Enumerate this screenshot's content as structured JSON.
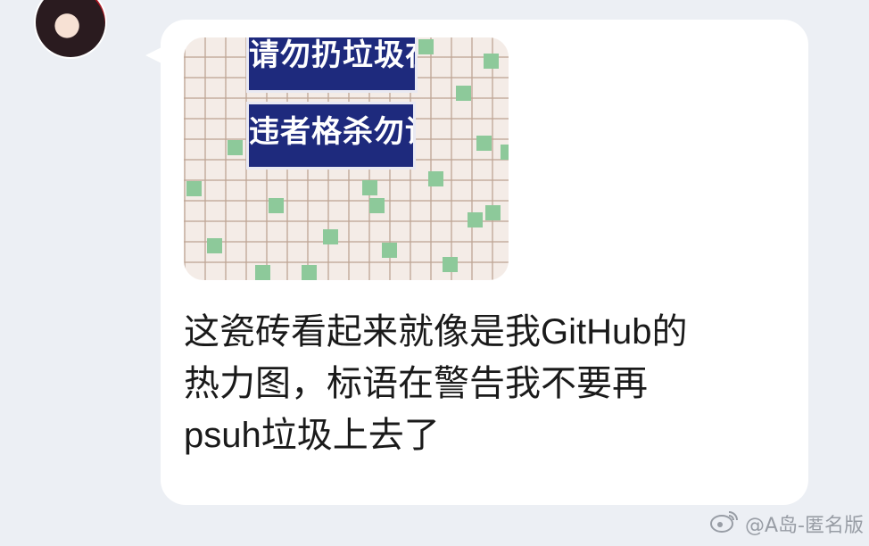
{
  "message": {
    "image_sign_line1": "请勿扔垃圾在此",
    "image_sign_line2": "违者格杀勿论",
    "text_line1": "这瓷砖看起来就像是我GitHub的",
    "text_line2": "热力图，标语在警告我不要再",
    "text_line3": "psuh垃圾上去了"
  },
  "watermark": {
    "text": "@A岛-匿名版",
    "icon": "weibo-icon"
  },
  "colors": {
    "background": "#eceff4",
    "bubble": "#ffffff",
    "sign_blue": "#1e2a7d",
    "tile_green": "#8dc99a"
  }
}
